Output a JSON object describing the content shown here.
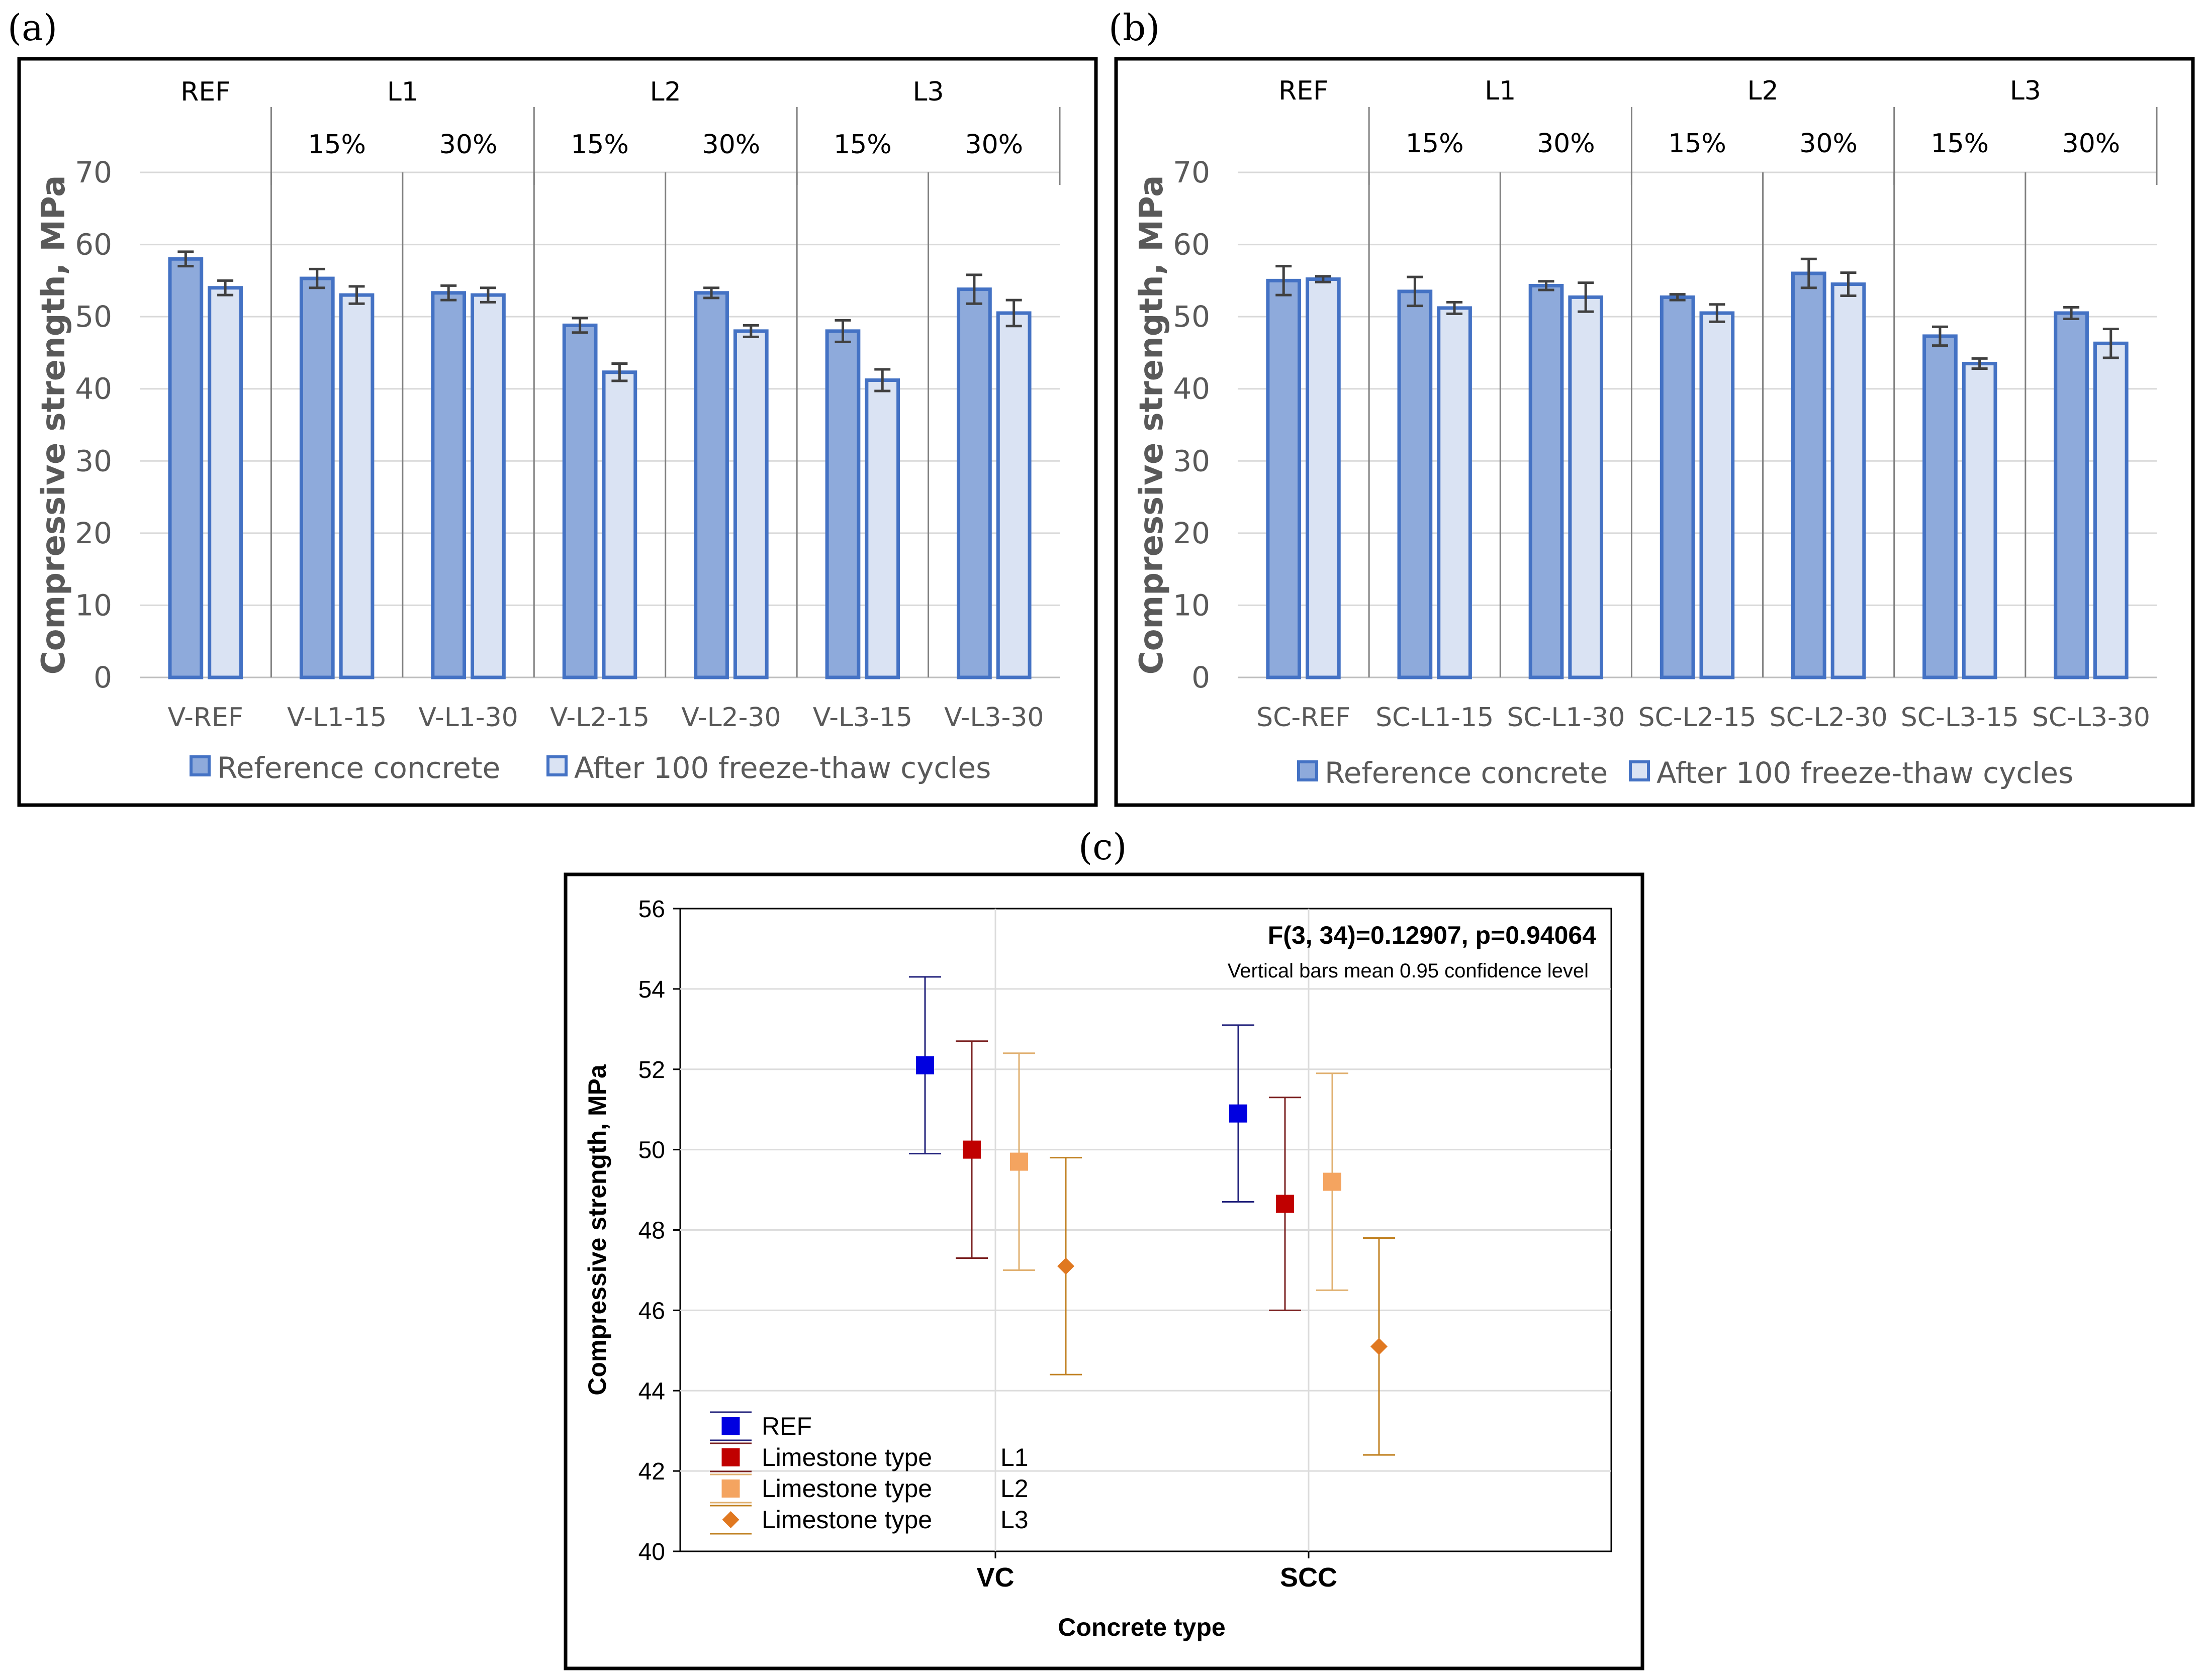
{
  "panels": {
    "a": "(a)",
    "b": "(b)",
    "c": "(c)"
  },
  "colors": {
    "ref_fill": "#8eaadb",
    "ref_stroke": "#4472c4",
    "ft_fill": "#dae3f3",
    "ft_stroke": "#4472c4",
    "err": "#404040",
    "c_ref": "#0000e0",
    "c_l1": "#c00000",
    "c_l2": "#f4a460",
    "c_l3": "#e07820",
    "c_ref_line": "#1f1f7a",
    "c_l1_line": "#7a1f1f",
    "c_l2_line": "#e0b070",
    "c_l3_line": "#c08020"
  },
  "chart_data": [
    {
      "id": "a",
      "type": "bar",
      "ylabel": "Compressive strength, MPa",
      "ylim": [
        0,
        70
      ],
      "yticks": [
        "0",
        "10",
        "20",
        "30",
        "40",
        "50",
        "60",
        "70"
      ],
      "categories": [
        "V-REF",
        "V-L1-15",
        "V-L1-30",
        "V-L2-15",
        "V-L2-30",
        "V-L3-15",
        "V-L3-30"
      ],
      "groups": [
        "REF",
        "L1",
        "L2",
        "L3"
      ],
      "subgroups": [
        "15%",
        "30%",
        "15%",
        "30%",
        "15%",
        "30%"
      ],
      "series": [
        {
          "name": "Reference concrete",
          "values": [
            58.0,
            55.3,
            53.3,
            48.8,
            53.3,
            48.0,
            53.8
          ],
          "errors": [
            1.0,
            1.3,
            1.0,
            1.0,
            0.7,
            1.5,
            2.0
          ]
        },
        {
          "name": "After 100 freeze-thaw cycles",
          "values": [
            54.0,
            53.0,
            53.0,
            42.3,
            48.0,
            41.2,
            50.5
          ],
          "errors": [
            1.0,
            1.2,
            1.0,
            1.2,
            0.8,
            1.5,
            1.8
          ]
        }
      ]
    },
    {
      "id": "b",
      "type": "bar",
      "ylabel": "Compressive strength, MPa",
      "ylim": [
        0,
        70
      ],
      "yticks": [
        "0",
        "10",
        "20",
        "30",
        "40",
        "50",
        "60",
        "70"
      ],
      "categories": [
        "SC-REF",
        "SC-L1-15",
        "SC-L1-30",
        "SC-L2-15",
        "SC-L2-30",
        "SC-L3-15",
        "SC-L3-30"
      ],
      "groups": [
        "REF",
        "L1",
        "L2",
        "L3"
      ],
      "subgroups": [
        "15%",
        "30%",
        "15%",
        "30%",
        "15%",
        "30%"
      ],
      "series": [
        {
          "name": "Reference concrete",
          "values": [
            55.0,
            53.5,
            54.3,
            52.7,
            56.0,
            47.3,
            50.5
          ],
          "errors": [
            2.0,
            2.0,
            0.6,
            0.4,
            2.0,
            1.3,
            0.8
          ]
        },
        {
          "name": "After 100 freeze-thaw cycles",
          "values": [
            55.2,
            51.2,
            52.7,
            50.5,
            54.5,
            43.5,
            46.3
          ],
          "errors": [
            0.4,
            0.8,
            2.0,
            1.2,
            1.6,
            0.7,
            2.0
          ]
        }
      ]
    },
    {
      "id": "c",
      "type": "scatter",
      "title": "F(3, 34)=0.12907, p=0.94064",
      "note": "Vertical bars mean 0.95 confidence level",
      "xlabel": "Concrete type",
      "ylabel": "Compressive strength, MPa",
      "ylim": [
        40,
        56
      ],
      "yticks": [
        "40",
        "42",
        "44",
        "46",
        "48",
        "50",
        "52",
        "54",
        "56"
      ],
      "categories": [
        "VC",
        "SCC"
      ],
      "series": [
        {
          "name": "REF",
          "suffix": "",
          "marker": "square",
          "means": [
            52.1,
            50.9
          ],
          "lower": [
            49.9,
            48.7
          ],
          "upper": [
            54.3,
            53.1
          ]
        },
        {
          "name": "Limestone type",
          "suffix": "L1",
          "marker": "square",
          "means": [
            50.0,
            48.65
          ],
          "lower": [
            47.3,
            46.0
          ],
          "upper": [
            52.7,
            51.3
          ]
        },
        {
          "name": "Limestone type",
          "suffix": "L2",
          "marker": "square",
          "means": [
            49.7,
            49.2
          ],
          "lower": [
            47.0,
            46.5
          ],
          "upper": [
            52.4,
            51.9
          ]
        },
        {
          "name": "Limestone type",
          "suffix": "L3",
          "marker": "diamond",
          "means": [
            47.1,
            45.1
          ],
          "lower": [
            44.4,
            42.4
          ],
          "upper": [
            49.8,
            47.8
          ]
        }
      ]
    }
  ]
}
